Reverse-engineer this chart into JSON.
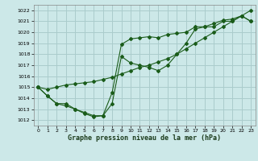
{
  "title": "Graphe pression niveau de la mer (hPa)",
  "bg_color": "#cce8e8",
  "grid_color": "#aacccc",
  "line_color": "#1a5c1a",
  "xlim": [
    -0.5,
    23.5
  ],
  "ylim": [
    1011.5,
    1022.5
  ],
  "xticks": [
    0,
    1,
    2,
    3,
    4,
    5,
    6,
    7,
    8,
    9,
    10,
    11,
    12,
    13,
    14,
    15,
    16,
    17,
    18,
    19,
    20,
    21,
    22,
    23
  ],
  "yticks": [
    1012,
    1013,
    1014,
    1015,
    1016,
    1017,
    1018,
    1019,
    1020,
    1021,
    1022
  ],
  "series1_x": [
    0,
    1,
    2,
    3,
    4,
    5,
    6,
    7,
    8,
    9,
    10,
    11,
    12,
    13,
    14,
    15,
    16,
    17,
    18,
    19,
    20,
    21,
    22,
    23
  ],
  "series1_y": [
    1015.0,
    1014.2,
    1013.5,
    1013.5,
    1013.0,
    1012.6,
    1012.3,
    1012.4,
    1014.5,
    1018.9,
    1019.4,
    1019.5,
    1019.6,
    1019.5,
    1019.8,
    1019.9,
    1020.0,
    1020.5,
    1020.5,
    1020.5,
    1021.0,
    1021.0,
    1021.5,
    1022.0
  ],
  "series2_x": [
    0,
    1,
    2,
    3,
    4,
    5,
    6,
    7,
    8,
    9,
    10,
    11,
    12,
    13,
    14,
    15,
    16,
    17,
    18,
    19,
    20,
    21,
    22,
    23
  ],
  "series2_y": [
    1015.0,
    1014.2,
    1013.5,
    1013.3,
    1013.0,
    1012.7,
    1012.4,
    1012.4,
    1013.5,
    1017.8,
    1017.2,
    1017.0,
    1016.8,
    1016.5,
    1017.0,
    1018.0,
    1019.0,
    1020.3,
    1020.5,
    1020.8,
    1021.1,
    1021.2,
    1021.5,
    1021.0
  ],
  "series3_x": [
    0,
    1,
    2,
    3,
    4,
    5,
    6,
    7,
    8,
    9,
    10,
    11,
    12,
    13,
    14,
    15,
    16,
    17,
    18,
    19,
    20,
    21,
    22,
    23
  ],
  "series3_y": [
    1015.0,
    1014.8,
    1015.0,
    1015.2,
    1015.3,
    1015.4,
    1015.5,
    1015.7,
    1015.9,
    1016.2,
    1016.5,
    1016.8,
    1017.0,
    1017.3,
    1017.6,
    1018.0,
    1018.5,
    1019.0,
    1019.5,
    1020.0,
    1020.5,
    1021.0,
    1021.5,
    1021.0
  ]
}
